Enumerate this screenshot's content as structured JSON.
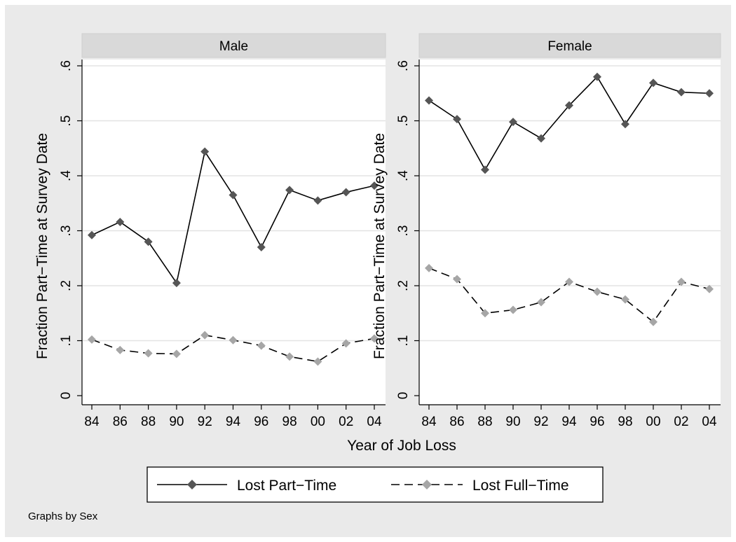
{
  "chart_data": {
    "type": "line",
    "xlabel": "Year of Job Loss",
    "ylabel": "Fraction Part−Time at Survey Date",
    "note": "Graphs by Sex",
    "x": [
      84,
      86,
      88,
      90,
      92,
      94,
      96,
      98,
      100,
      102,
      104
    ],
    "xtick_labels": [
      "84",
      "86",
      "88",
      "90",
      "92",
      "94",
      "96",
      "98",
      "00",
      "02",
      "04"
    ],
    "ylim": [
      0,
      0.6
    ],
    "yticks": [
      0,
      0.1,
      0.2,
      0.3,
      0.4,
      0.5,
      0.6
    ],
    "ytick_labels": [
      "0",
      ".1",
      ".2",
      ".3",
      ".4",
      ".5",
      ".6"
    ],
    "grid": true,
    "legend_position": "bottom",
    "series_styles": [
      {
        "name": "Lost Part−Time",
        "color": "#555555",
        "dash": "solid"
      },
      {
        "name": "Lost Full−Time",
        "color": "#a6a6a6",
        "dash": "dashed"
      }
    ],
    "panels": [
      {
        "title": "Male",
        "series": [
          {
            "name": "Lost Part−Time",
            "values": [
              0.292,
              0.316,
              0.28,
              0.205,
              0.444,
              0.365,
              0.27,
              0.374,
              0.355,
              0.37,
              0.382
            ]
          },
          {
            "name": "Lost Full−Time",
            "values": [
              0.102,
              0.083,
              0.077,
              0.076,
              0.11,
              0.101,
              0.091,
              0.071,
              0.062,
              0.095,
              0.104
            ]
          }
        ]
      },
      {
        "title": "Female",
        "series": [
          {
            "name": "Lost Part−Time",
            "values": [
              0.537,
              0.503,
              0.411,
              0.498,
              0.468,
              0.528,
              0.58,
              0.494,
              0.569,
              0.552,
              0.55
            ]
          },
          {
            "name": "Lost Full−Time",
            "values": [
              0.232,
              0.212,
              0.15,
              0.156,
              0.17,
              0.207,
              0.189,
              0.175,
              0.134,
              0.207,
              0.194
            ]
          }
        ]
      }
    ]
  }
}
